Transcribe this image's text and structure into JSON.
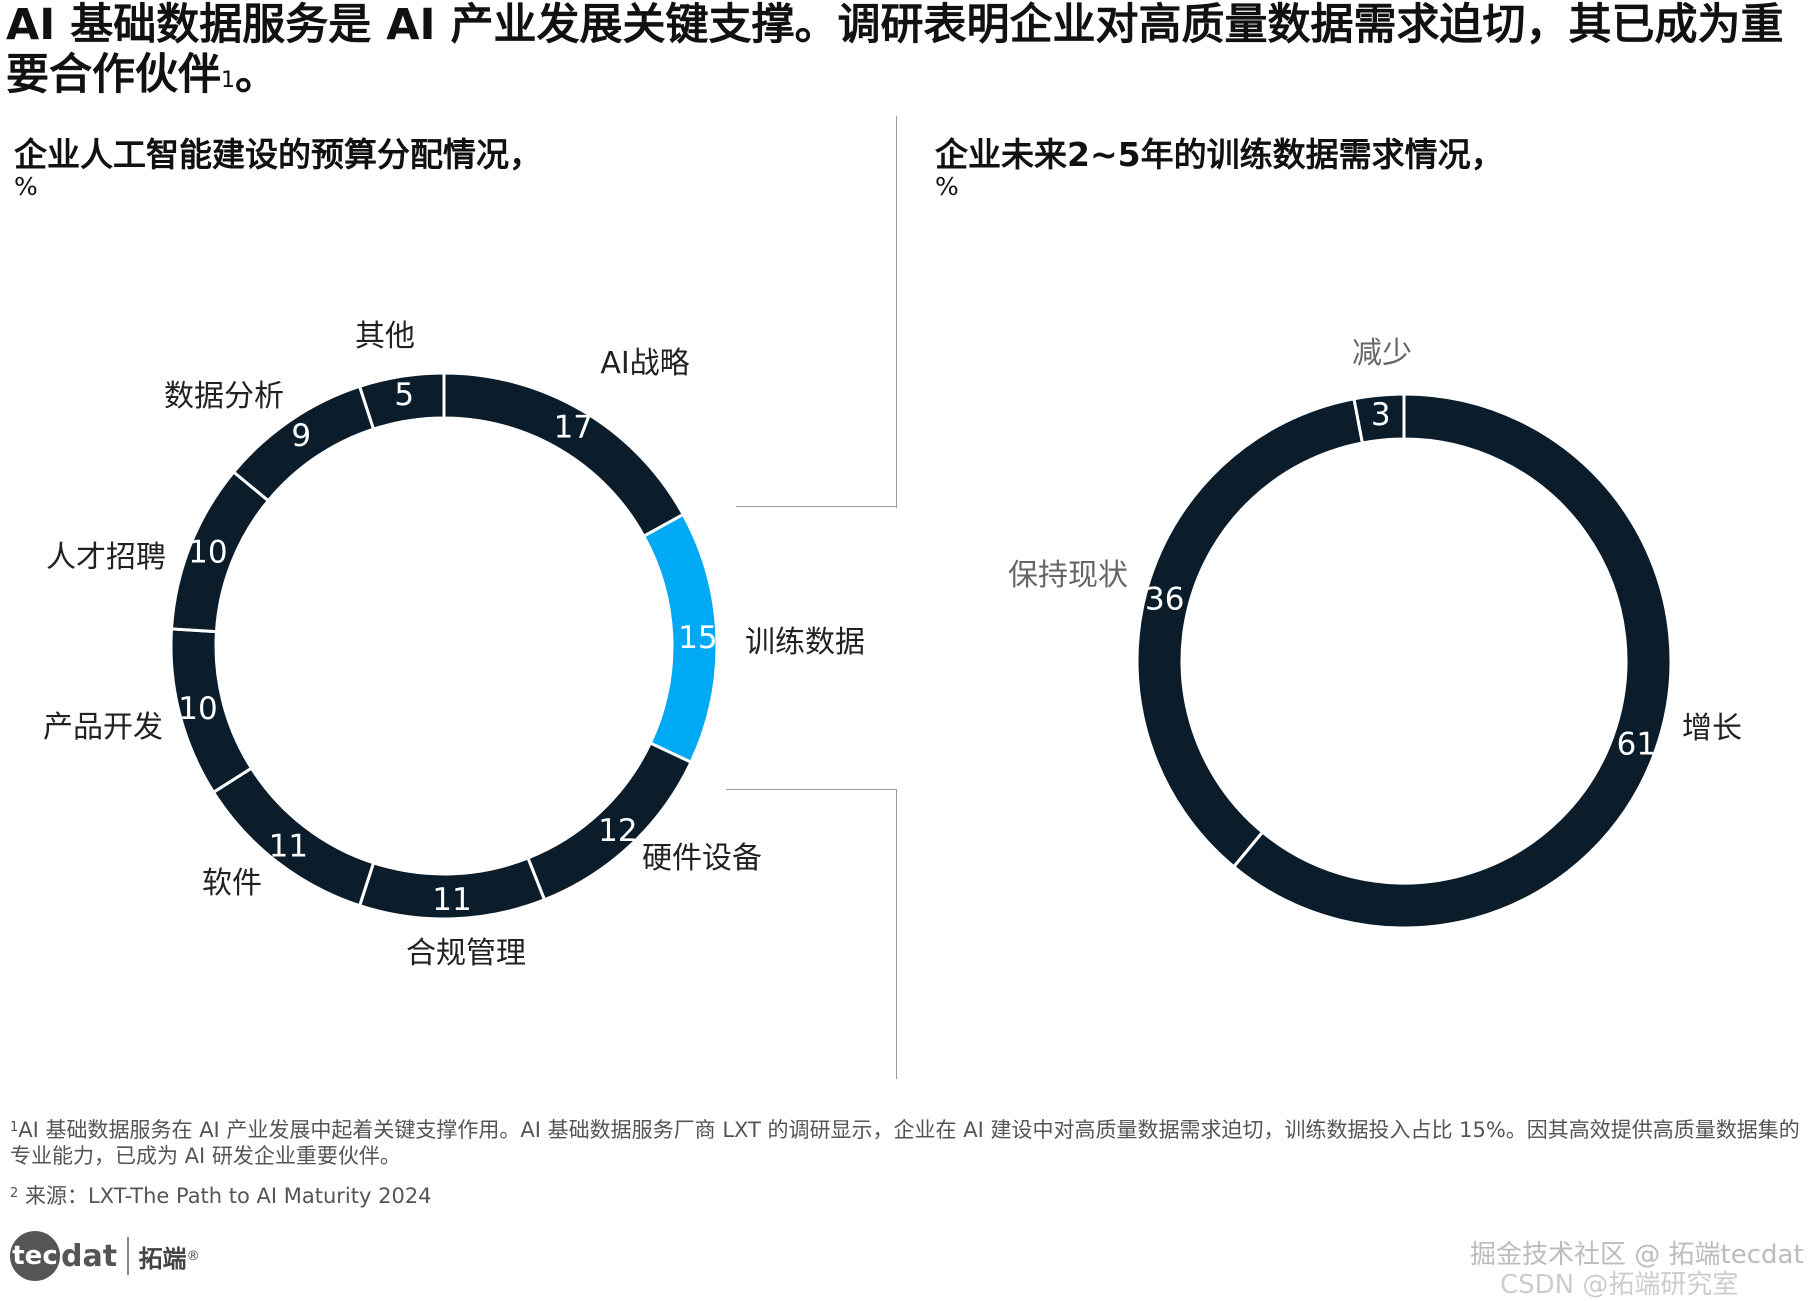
{
  "headline": {
    "text": "AI 基础数据服务是 AI 产业发展关键支撑。调研表明企业对高质量数据需求迫切，其已成为重要合作伙伴",
    "sup": "1",
    "end": "。"
  },
  "chart_data": [
    {
      "type": "pie",
      "title": "企业人工智能建设的预算分配情况，",
      "unit": "%",
      "categories": [
        "AI战略",
        "训练数据",
        "硬件设备",
        "合规管理",
        "软件",
        "产品开发",
        "人才招聘",
        "数据分析",
        "其他"
      ],
      "values": [
        17,
        15,
        12,
        11,
        11,
        10,
        10,
        9,
        5
      ],
      "colors": [
        "#0b1d2a",
        "#00a9f4",
        "#0b1d2a",
        "#0b1d2a",
        "#0b1d2a",
        "#0b1d2a",
        "#0b1d2a",
        "#0b1d2a",
        "#0b1d2a"
      ],
      "highlight": "训练数据"
    },
    {
      "type": "pie",
      "title": "企业未来2~5年的训练数据需求情况，",
      "unit": "%",
      "categories": [
        "增长",
        "保持现状",
        "减少"
      ],
      "values": [
        61,
        36,
        3
      ],
      "colors": [
        "#0b1d2a",
        "#0b1d2a",
        "#0b1d2a"
      ]
    }
  ],
  "footnotes": {
    "note1_sup": "1",
    "note1": "AI 基础数据服务在 AI 产业发展中起着关键支撑作用。AI 基础数据服务厂商 LXT 的调研显示，企业在 AI 建设中对高质量数据需求迫切，训练数据投入占比 15%。因其高效提供高质量数据集的专业能力，已成为 AI 研发企业重要伙伴。",
    "note2_sup": "2",
    "note2": "来源：LXT-The Path to AI Maturity 2024"
  },
  "logo": {
    "mark": "tec",
    "rest": "dat",
    "cn": "拓端",
    "reg": "®"
  },
  "watermarks": {
    "line1": "掘金技术社区 @ 拓端tecdat",
    "line2": "CSDN @拓端研究室"
  },
  "colors": {
    "dark": "#0b1d2a",
    "accent": "#00a9f4",
    "divider": "#9a9a9a"
  }
}
